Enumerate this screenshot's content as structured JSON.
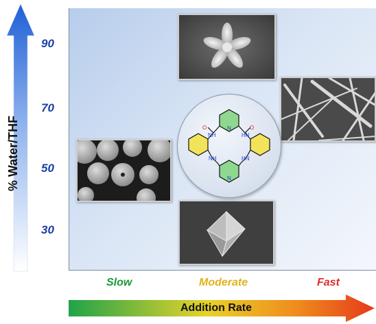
{
  "y_axis": {
    "label": "% Water/THF",
    "ticks": [
      "90",
      "70",
      "50",
      "30"
    ],
    "arrow_color": "#1f5fd6"
  },
  "x_axis": {
    "label": "Addition Rate",
    "ticks": [
      {
        "label": "Slow",
        "color": "#1a9a3a"
      },
      {
        "label": "Moderate",
        "color": "#e1b21c"
      },
      {
        "label": "Fast",
        "color": "#e22b2b"
      }
    ]
  },
  "molecule": {
    "atom_labels": [
      "N",
      "O",
      "O",
      "NH",
      "HN",
      "NH",
      "HN",
      "N"
    ],
    "colors": {
      "pyridine_ring": "#8fd88f",
      "benzene_ring": "#f2e35a",
      "oxygen": "#e02020",
      "nitrogen": "#1b3fd1"
    }
  },
  "images": [
    {
      "name": "flower-microstructure",
      "description_icon": "sem-flower-icon"
    },
    {
      "name": "rod-microstructure",
      "description_icon": "sem-rods-icon"
    },
    {
      "name": "sphere-microstructure",
      "description_icon": "sem-spheres-icon"
    },
    {
      "name": "octahedron-microstructure",
      "description_icon": "sem-octahedron-icon"
    }
  ]
}
